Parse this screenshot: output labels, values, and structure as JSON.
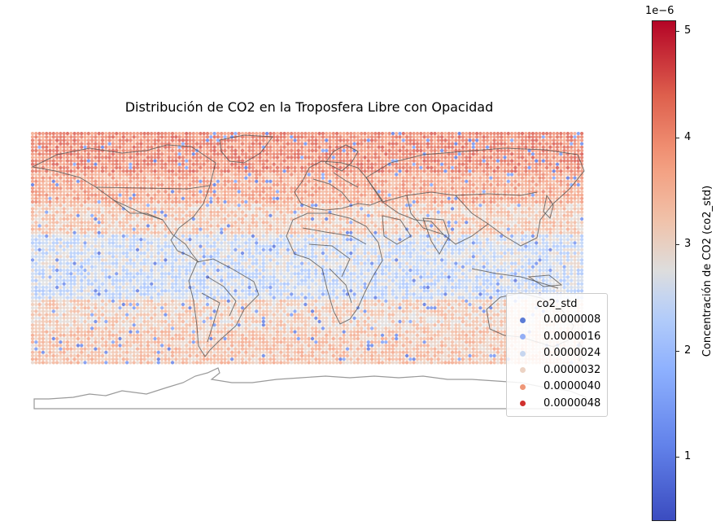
{
  "title": "Distribución de CO2 en la Troposfera Libre con Opacidad",
  "legend": {
    "title": "co2_std",
    "items": [
      {
        "label": "0.0000008",
        "color": "#5b7bd6"
      },
      {
        "label": "0.0000016",
        "color": "#93aef5"
      },
      {
        "label": "0.0000024",
        "color": "#c7d6ef"
      },
      {
        "label": "0.0000032",
        "color": "#ecd3c4"
      },
      {
        "label": "0.0000040",
        "color": "#ee9677"
      },
      {
        "label": "0.0000048",
        "color": "#d02f2d"
      }
    ]
  },
  "colorbar": {
    "label": "Concentración de CO2 (co2_std)",
    "scale_text": "1e−6",
    "ticks": [
      "1",
      "2",
      "3",
      "4",
      "5"
    ],
    "range": [
      0.4,
      5.1
    ],
    "colormap": "coolwarm"
  },
  "chart_data": {
    "type": "scatter",
    "title": "Distribución de CO2 en la Troposfera Libre con Opacidad",
    "variable": "co2_std",
    "units_scale": "1e-6",
    "colorbar_range": [
      4e-07,
      5.1e-06
    ],
    "grid": false,
    "legend_position": "center-right",
    "description_of_bands": [
      {
        "lat_range": [
          60,
          84
        ],
        "typical_value": 4.1e-06
      },
      {
        "lat_range": [
          40,
          60
        ],
        "typical_value": 3.7e-06
      },
      {
        "lat_range": [
          20,
          40
        ],
        "typical_value": 3.2e-06
      },
      {
        "lat_range": [
          0,
          20
        ],
        "typical_value": 2.6e-06
      },
      {
        "lat_range": [
          -20,
          0
        ],
        "typical_value": 2.5e-06
      },
      {
        "lat_range": [
          -40,
          -20
        ],
        "typical_value": 3.1e-06
      },
      {
        "lat_range": [
          -60,
          -40
        ],
        "typical_value": 3.3e-06
      }
    ]
  }
}
